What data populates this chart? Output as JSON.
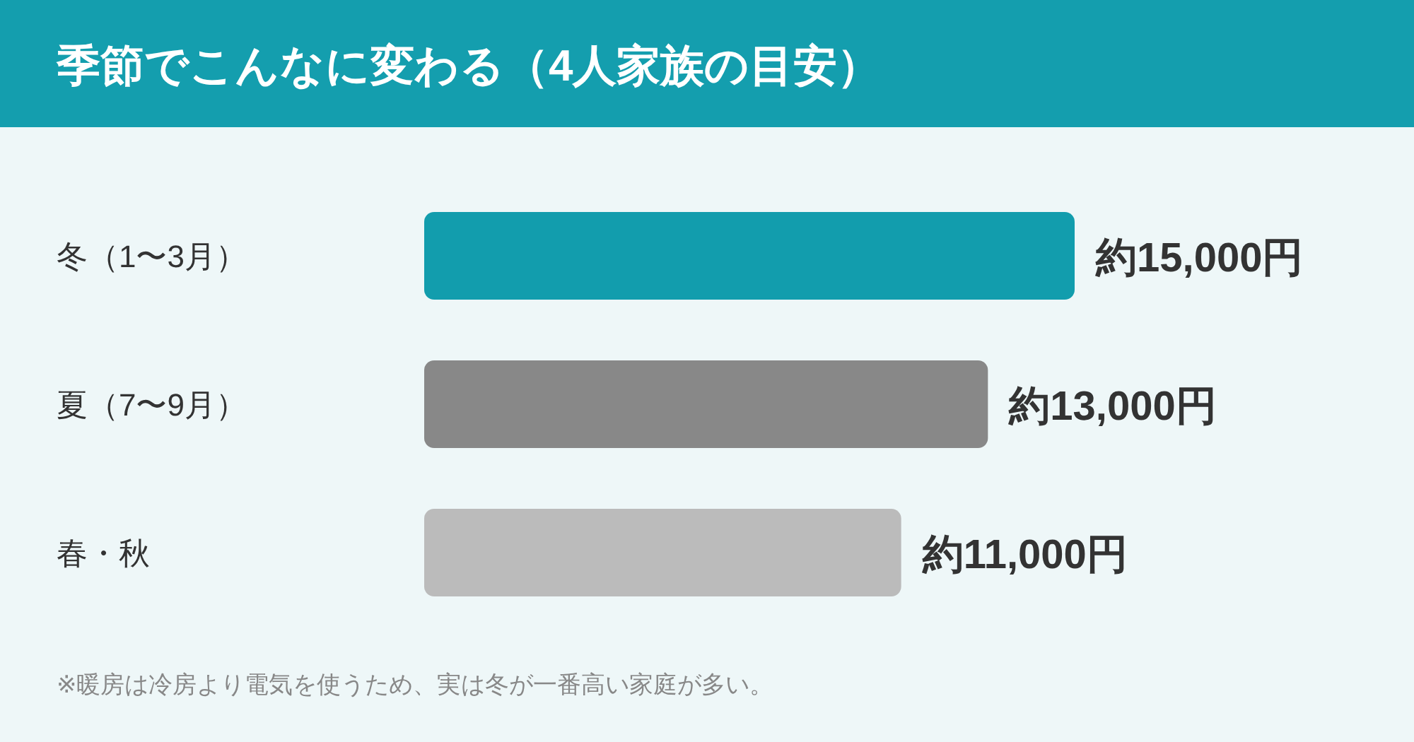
{
  "chart_data": {
    "type": "bar",
    "orientation": "horizontal",
    "title": "季節でこんなに変わる（4人家族の目安）",
    "categories": [
      "冬（1〜3月）",
      "夏（7〜9月）",
      "春・秋"
    ],
    "values": [
      15000,
      13000,
      11000
    ],
    "colors": [
      "#129dad",
      "#888888",
      "#bbbbbb"
    ],
    "value_labels": [
      "約15,000円",
      "約13,000円",
      "約11,000円"
    ],
    "annotations": [
      "※暖房は冷房より電気を使うため、実は冬が一番高い家庭が多い。"
    ]
  }
}
